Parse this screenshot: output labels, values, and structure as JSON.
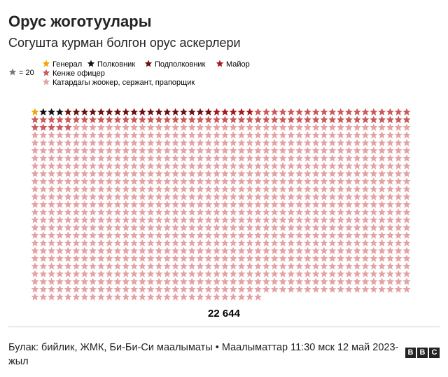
{
  "chart_data": {
    "type": "unit",
    "title": "Орус жоготуулары",
    "subtitle": "Согушта курман болгон орус аскерлери",
    "unit": {
      "value": 20,
      "label": "= 20"
    },
    "series": [
      {
        "name": "Генерал",
        "color": "#f0a800",
        "values": [
          20
        ]
      },
      {
        "name": "Полковник",
        "color": "#111111",
        "values": [
          60
        ]
      },
      {
        "name": "Подполковник",
        "color": "#6e1010",
        "values": [
          360
        ]
      },
      {
        "name": "Майор",
        "color": "#a8191c",
        "values": [
          100
        ]
      },
      {
        "name": "Кенже офицер",
        "color": "#c75b5e",
        "values": [
          1400
        ]
      },
      {
        "name": "Катардагы жоокер, сержант, прапорщик",
        "color": "#e3a3a6",
        "values": [
          20704
        ]
      }
    ],
    "total": {
      "value": 22644,
      "label": "22 644"
    },
    "source": "Булак: бийлик, ЖМК, Би-Би-Си маалыматы • Маалыматтар 11:30 мск 12 май 2023-жыл",
    "logo": [
      "B",
      "B",
      "C"
    ]
  }
}
